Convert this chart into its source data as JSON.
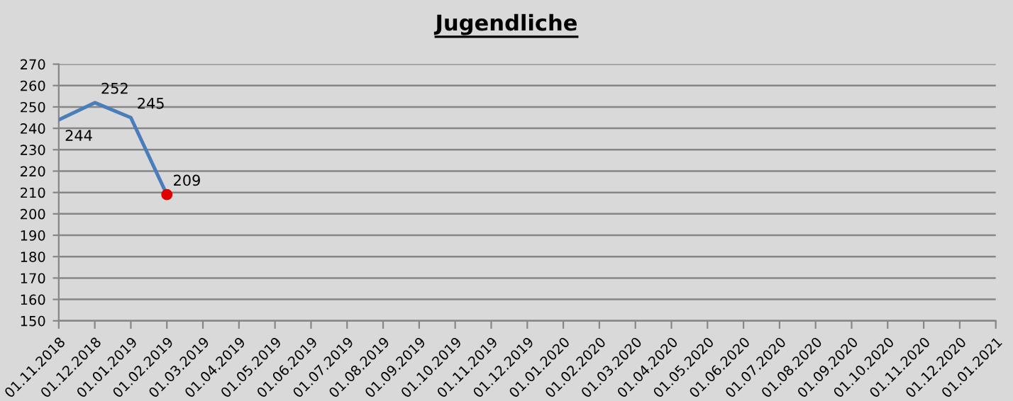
{
  "chart_data": {
    "type": "line",
    "title": "Jugendliche",
    "categories": [
      "01.11.2018",
      "01.12.2018",
      "01.01.2019",
      "01.02.2019",
      "01.03.2019",
      "01.04.2019",
      "01.05.2019",
      "01.06.2019",
      "01.07.2019",
      "01.08.2019",
      "01.09.2019",
      "01.10.2019",
      "01.11.2019",
      "01.12.2019",
      "01.01.2020",
      "01.02.2020",
      "01.03.2020",
      "01.04.2020",
      "01.05.2020",
      "01.06.2020",
      "01.07.2020",
      "01.08.2020",
      "01.09.2020",
      "01.10.2020",
      "01.11.2020",
      "01.12.2020",
      "01.01.2021"
    ],
    "series": [
      {
        "color": "#4a7ebb",
        "values": [
          244,
          252,
          245,
          209,
          null,
          null,
          null,
          null,
          null,
          null,
          null,
          null,
          null,
          null,
          null,
          null,
          null,
          null,
          null,
          null,
          null,
          null,
          null,
          null,
          null,
          null,
          null
        ],
        "data_labels": true
      },
      {
        "type": "scatter",
        "color": "#e00000",
        "x": [
          "01.02.2019"
        ],
        "values": [
          209
        ],
        "marker": "circle"
      }
    ],
    "ylim": [
      150,
      270
    ],
    "yticks": [
      150,
      160,
      170,
      180,
      190,
      200,
      210,
      220,
      230,
      240,
      250,
      260,
      270
    ],
    "grid": "y",
    "marker": "none",
    "line_style": "solid"
  }
}
